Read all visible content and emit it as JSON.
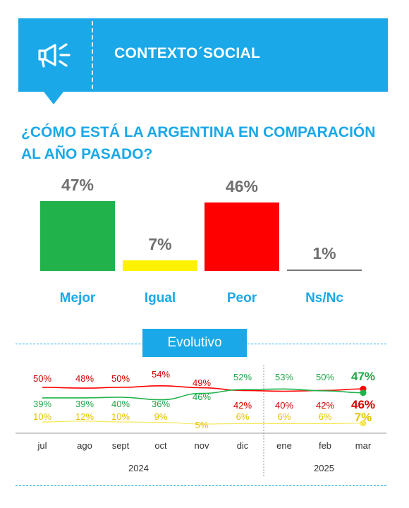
{
  "header": {
    "title": "CONTEXTO´SOCIAL",
    "icon": "megaphone-icon"
  },
  "question": "¿CÓMO ESTÁ LA ARGENTINA EN COMPARACIÓN AL AÑO PASADO?",
  "colors": {
    "accent": "#1aa8e8",
    "mejor": "#21b24b",
    "igual": "#fff200",
    "peor": "#ff0000",
    "nsnc": "#777777"
  },
  "chart_data": [
    {
      "type": "bar",
      "categories": [
        "Mejor",
        "Igual",
        "Peor",
        "Ns/Nc"
      ],
      "values": [
        47,
        7,
        46,
        1
      ],
      "value_labels": [
        "47%",
        "7%",
        "46%",
        "1%"
      ],
      "colors": [
        "#21b24b",
        "#fff200",
        "#ff0000",
        "#777777"
      ],
      "title": "¿CÓMO ESTÁ LA ARGENTINA EN COMPARACIÓN AL AÑO PASADO?"
    },
    {
      "type": "line",
      "title": "Evolutivo",
      "x": [
        "jul",
        "ago",
        "sept",
        "oct",
        "nov",
        "dic",
        "ene",
        "feb",
        "mar"
      ],
      "year_groups": [
        {
          "label": "2024",
          "months": 6
        },
        {
          "label": "2025",
          "months": 3
        }
      ],
      "series": [
        {
          "color": "#ff0000",
          "label_color": "#d40000",
          "values": [
            50,
            48,
            50,
            54,
            49,
            42,
            40,
            42,
            46
          ]
        },
        {
          "color": "#21b24b",
          "label_color": "#21a548",
          "values": [
            39,
            39,
            40,
            36,
            46,
            52,
            53,
            50,
            47
          ]
        },
        {
          "color": "#f5e85a",
          "label_color": "#e6c200",
          "values": [
            10,
            12,
            10,
            9,
            5,
            6,
            6,
            6,
            7
          ]
        }
      ],
      "labels": [
        [
          "50%",
          "48%",
          "50%",
          "54%",
          "49%",
          "42%",
          "40%",
          "42%",
          "46%"
        ],
        [
          "39%",
          "39%",
          "40%",
          "36%",
          "46%",
          "52%",
          "53%",
          "50%",
          "47%"
        ],
        [
          "10%",
          "12%",
          "10%",
          "9%",
          "5%",
          "6%",
          "6%",
          "6%",
          "7%"
        ]
      ],
      "ylim": [
        0,
        60
      ]
    }
  ]
}
